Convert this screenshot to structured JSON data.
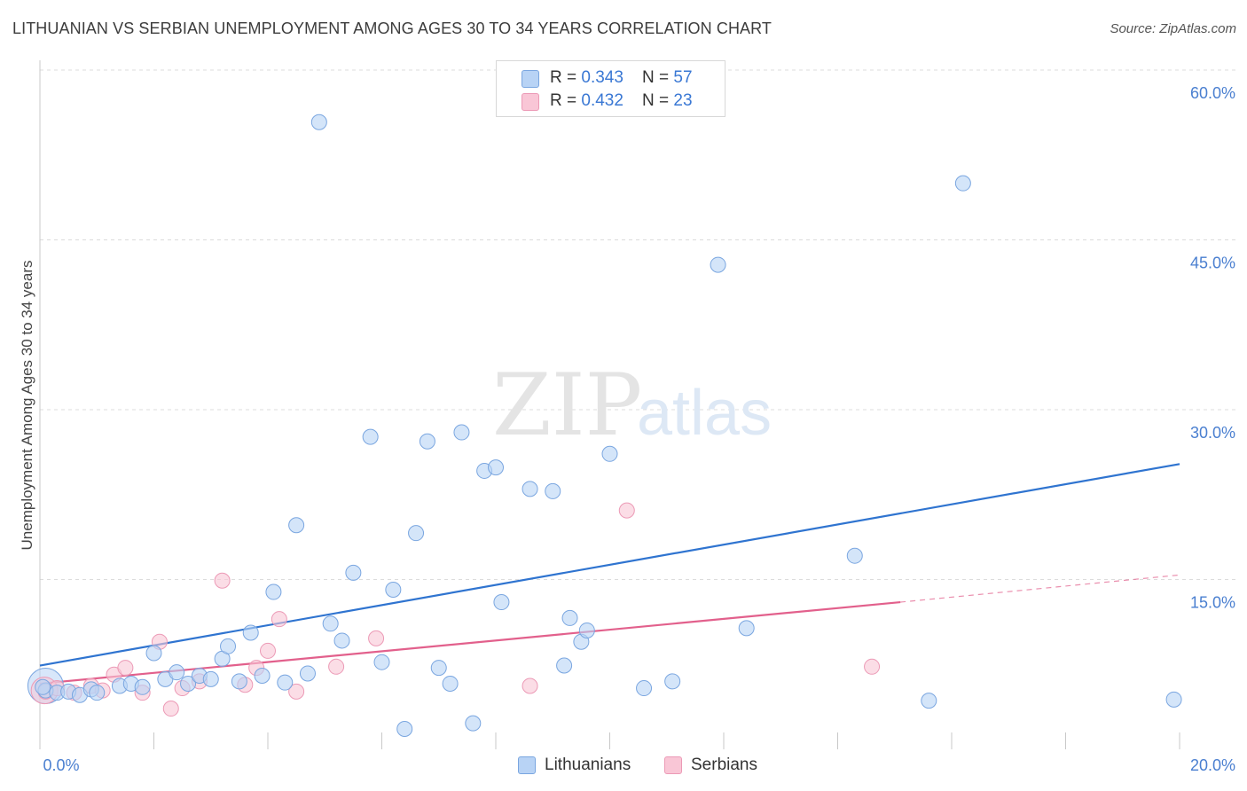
{
  "title": "LITHUANIAN VS SERBIAN UNEMPLOYMENT AMONG AGES 30 TO 34 YEARS CORRELATION CHART",
  "source": "Source: ZipAtlas.com",
  "watermark": {
    "zip": "ZIP",
    "atlas": "atlas"
  },
  "legend": {
    "rows": [
      {
        "r_label": "R = ",
        "r_value": "0.343",
        "n_label": "N = ",
        "n_value": "57"
      },
      {
        "r_label": "R = ",
        "r_value": "0.432",
        "n_label": "N = ",
        "n_value": "23"
      }
    ]
  },
  "bottom_legend": {
    "lithuanians": "Lithuanians",
    "serbians": "Serbians"
  },
  "colors": {
    "lithuanians_fill": "#b8d3f5",
    "lithuanians_stroke": "#7aa6e0",
    "lithuanians_line": "#2f74d0",
    "serbians_fill": "#f9c6d6",
    "serbians_stroke": "#ec9ab6",
    "serbians_line": "#e2608c",
    "tick": "#4a7fd0",
    "grid": "#dcdcdc"
  },
  "chart_data": {
    "type": "scatter",
    "title": "LITHUANIAN VS SERBIAN UNEMPLOYMENT AMONG AGES 30 TO 34 YEARS CORRELATION CHART",
    "xlabel": "",
    "ylabel": "Unemployment Among Ages 30 to 34 years",
    "xlim": [
      0,
      20
    ],
    "ylim": [
      0,
      62
    ],
    "x_ticks": [
      "0.0%",
      "20.0%"
    ],
    "y_ticks": [
      {
        "value": 15,
        "label": "15.0%"
      },
      {
        "value": 30,
        "label": "30.0%"
      },
      {
        "value": 45,
        "label": "45.0%"
      },
      {
        "value": 60,
        "label": "60.0%"
      }
    ],
    "grid": true,
    "legend_position": "top-center",
    "series": [
      {
        "name": "Lithuanians",
        "points": [
          [
            0.1,
            5.2
          ],
          [
            0.3,
            5.0
          ],
          [
            0.5,
            5.1
          ],
          [
            0.7,
            4.8
          ],
          [
            0.9,
            5.3
          ],
          [
            1.0,
            5.0
          ],
          [
            1.4,
            5.6
          ],
          [
            1.6,
            5.8
          ],
          [
            1.8,
            5.5
          ],
          [
            2.0,
            8.5
          ],
          [
            2.2,
            6.2
          ],
          [
            2.4,
            6.8
          ],
          [
            2.6,
            5.8
          ],
          [
            2.8,
            6.5
          ],
          [
            3.0,
            6.2
          ],
          [
            3.2,
            8.0
          ],
          [
            3.3,
            9.1
          ],
          [
            3.5,
            6.0
          ],
          [
            3.7,
            10.3
          ],
          [
            3.9,
            6.5
          ],
          [
            4.1,
            13.9
          ],
          [
            4.3,
            5.9
          ],
          [
            4.5,
            19.8
          ],
          [
            4.7,
            6.7
          ],
          [
            4.9,
            55.4
          ],
          [
            5.1,
            11.1
          ],
          [
            5.3,
            9.6
          ],
          [
            5.5,
            15.6
          ],
          [
            5.8,
            27.6
          ],
          [
            6.0,
            7.7
          ],
          [
            6.2,
            14.1
          ],
          [
            6.4,
            1.8
          ],
          [
            6.6,
            19.1
          ],
          [
            6.8,
            27.2
          ],
          [
            7.0,
            7.2
          ],
          [
            7.2,
            5.8
          ],
          [
            7.4,
            28.0
          ],
          [
            7.6,
            2.3
          ],
          [
            7.8,
            24.6
          ],
          [
            8.0,
            24.9
          ],
          [
            8.1,
            13.0
          ],
          [
            8.6,
            23.0
          ],
          [
            9.0,
            22.8
          ],
          [
            9.2,
            7.4
          ],
          [
            9.3,
            11.6
          ],
          [
            9.5,
            9.5
          ],
          [
            9.6,
            10.5
          ],
          [
            10.0,
            26.1
          ],
          [
            10.6,
            5.4
          ],
          [
            11.1,
            6.0
          ],
          [
            11.9,
            42.8
          ],
          [
            12.4,
            10.7
          ],
          [
            14.3,
            17.1
          ],
          [
            15.6,
            4.3
          ],
          [
            16.2,
            50.0
          ],
          [
            19.9,
            4.4
          ],
          [
            0.05,
            5.5
          ]
        ],
        "trend": [
          [
            0,
            7.4
          ],
          [
            20,
            25.2
          ]
        ]
      },
      {
        "name": "Serbians",
        "points": [
          [
            0.1,
            5.1
          ],
          [
            0.3,
            5.4
          ],
          [
            0.6,
            5.0
          ],
          [
            0.9,
            5.6
          ],
          [
            1.1,
            5.2
          ],
          [
            1.3,
            6.6
          ],
          [
            1.5,
            7.2
          ],
          [
            1.8,
            5.0
          ],
          [
            2.1,
            9.5
          ],
          [
            2.3,
            3.6
          ],
          [
            2.5,
            5.4
          ],
          [
            2.8,
            6.0
          ],
          [
            3.2,
            14.9
          ],
          [
            3.6,
            5.7
          ],
          [
            3.8,
            7.2
          ],
          [
            4.0,
            8.7
          ],
          [
            4.2,
            11.5
          ],
          [
            4.5,
            5.1
          ],
          [
            5.2,
            7.3
          ],
          [
            5.9,
            9.8
          ],
          [
            8.6,
            5.6
          ],
          [
            10.3,
            21.1
          ],
          [
            14.6,
            7.3
          ]
        ],
        "trend_solid": [
          [
            0,
            5.8
          ],
          [
            15.1,
            13.0
          ]
        ],
        "trend_dashed": [
          [
            15.1,
            13.0
          ],
          [
            20,
            15.4
          ]
        ]
      }
    ]
  }
}
